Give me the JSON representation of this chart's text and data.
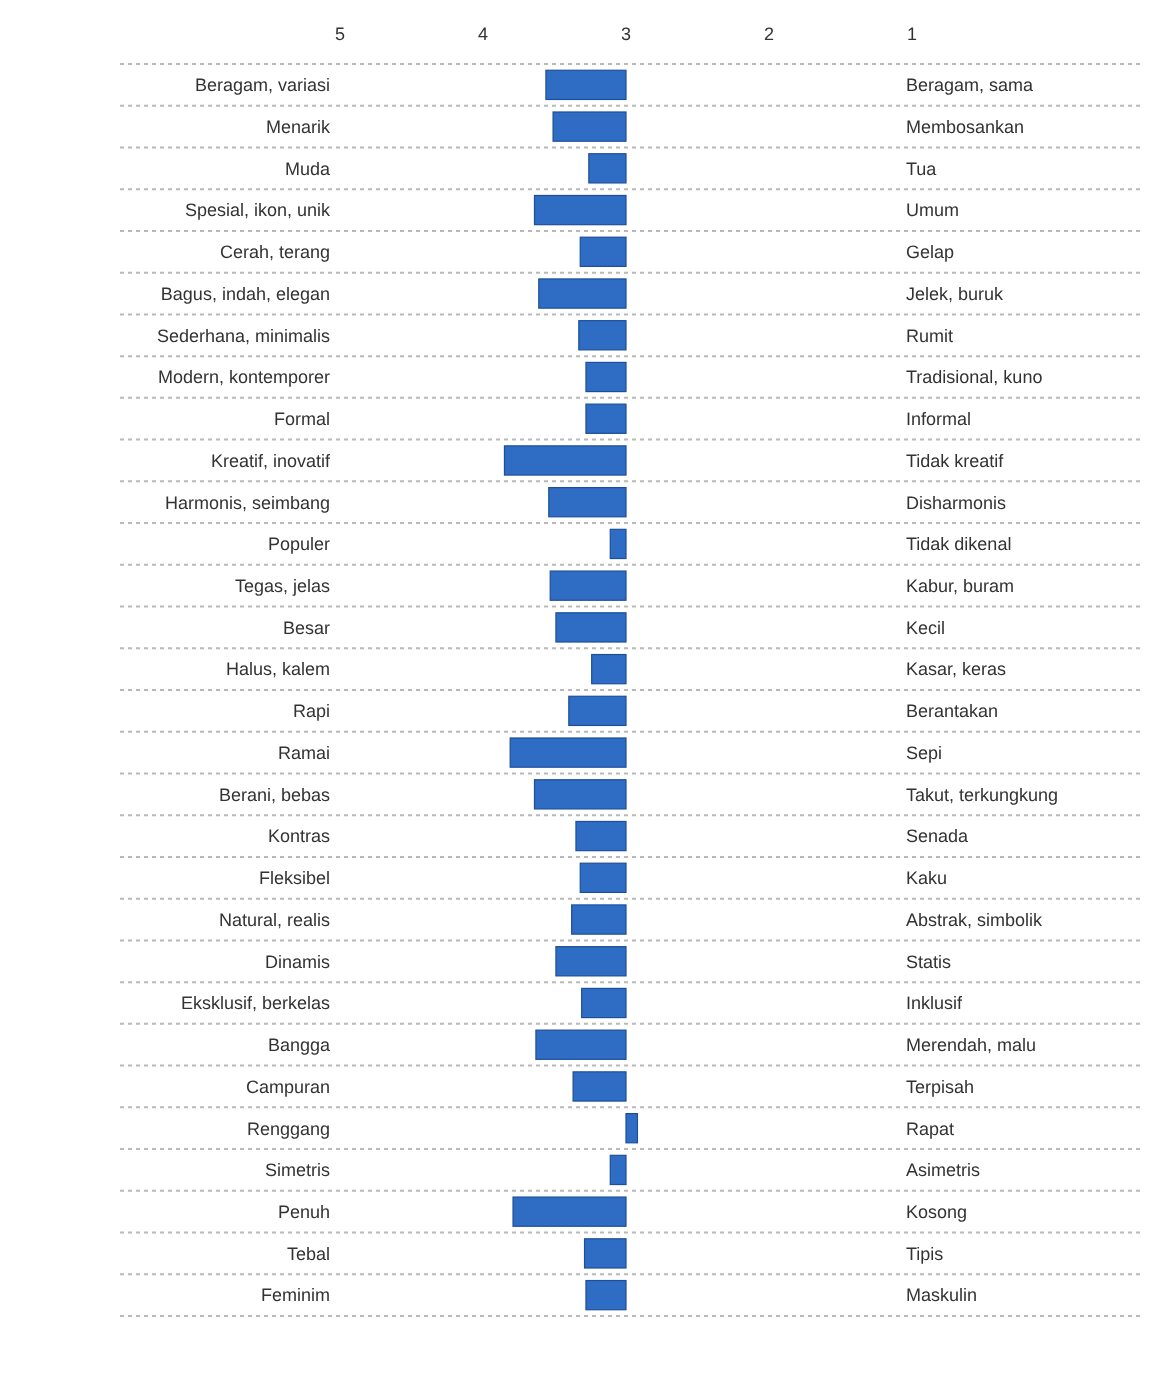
{
  "chart_data": {
    "type": "bar",
    "orientation": "horizontal",
    "categories": [
      "Beragam, variasi",
      "Menarik",
      "Muda",
      "Spesial, ikon, unik",
      "Cerah, terang",
      "Bagus, indah, elegan",
      "Sederhana, minimalis",
      "Modern, kontemporer",
      "Formal",
      "Kreatif, inovatif",
      "Harmonis, seimbang",
      "Populer",
      "Tegas, jelas",
      "Besar",
      "Halus, kalem",
      "Rapi",
      "Ramai",
      "Berani, bebas",
      "Kontras",
      "Fleksibel",
      "Natural, realis",
      "Dinamis",
      "Eksklusif, berkelas",
      "Bangga",
      "Campuran",
      "Renggang",
      "Simetris",
      "Penuh",
      "Tebal",
      "Feminim"
    ],
    "y2_categories": [
      "Beragam, sama",
      "Membosankan",
      "Tua",
      "Umum",
      "Gelap",
      "Jelek, buruk",
      "Rumit",
      "Tradisional, kuno",
      "Informal",
      "Tidak kreatif",
      "Disharmonis",
      "Tidak dikenal",
      "Kabur, buram",
      "Kecil",
      "Kasar, keras",
      "Berantakan",
      "Sepi",
      "Takut, terkungkung",
      "Senada",
      "Kaku",
      "Abstrak, simbolik",
      "Statis",
      "Inklusif",
      "Merendah, malu",
      "Terpisah",
      "Rapat",
      "Asimetris",
      "Kosong",
      "Tipis",
      "Maskulin"
    ],
    "values": [
      0.56,
      0.51,
      0.26,
      0.64,
      0.32,
      0.61,
      0.33,
      0.28,
      0.28,
      0.85,
      0.54,
      0.11,
      0.53,
      0.49,
      0.24,
      0.4,
      0.81,
      0.64,
      0.35,
      0.32,
      0.38,
      0.49,
      0.31,
      0.63,
      0.37,
      -0.08,
      0.11,
      0.79,
      0.29,
      0.28
    ],
    "base": [
      3,
      3,
      3,
      3,
      3,
      3,
      3,
      3,
      3,
      3,
      3,
      3,
      3,
      3,
      3,
      3,
      3,
      3,
      3,
      3,
      3,
      3,
      3,
      3,
      3,
      3,
      3,
      3,
      3,
      3
    ],
    "color": "#2f6cc4",
    "xlim": [
      5,
      1
    ],
    "xticks": [
      5,
      4,
      3,
      2,
      1
    ],
    "grid": "y"
  }
}
